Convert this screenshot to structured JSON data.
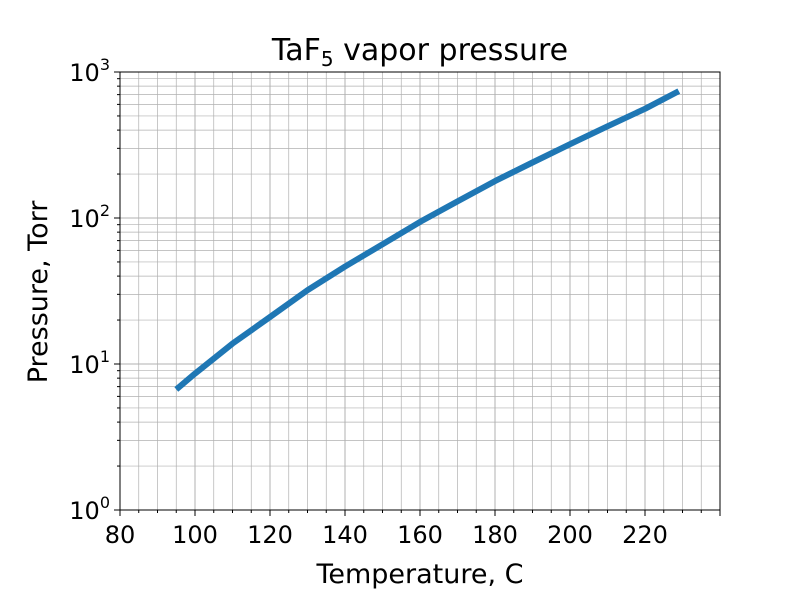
{
  "chart_data": {
    "type": "line",
    "title_main": "TaF",
    "title_sub": "5",
    "title_rest": " vapor pressure",
    "xlabel": "Temperature, C",
    "ylabel": "Pressure, Torr",
    "xlim": [
      80,
      240
    ],
    "ylim": [
      1,
      1000
    ],
    "y_scale": "log",
    "grid": true,
    "x_ticks": [
      80,
      100,
      120,
      140,
      160,
      180,
      200,
      220
    ],
    "x_tick_labels": [
      "80",
      "100",
      "120",
      "140",
      "160",
      "180",
      "200",
      "220"
    ],
    "y_ticks": [
      1,
      10,
      100,
      1000
    ],
    "y_tick_base": "10",
    "y_tick_exponents": [
      "0",
      "1",
      "2",
      "3"
    ],
    "series": [
      {
        "color": "#1f77b4",
        "x": [
          95,
          100,
          110,
          120,
          130,
          140,
          150,
          160,
          170,
          180,
          190,
          200,
          210,
          220,
          229
        ],
        "y": [
          6.7,
          8.6,
          13.8,
          21.0,
          32.0,
          46.5,
          66.0,
          94.0,
          130,
          179,
          240,
          320,
          425,
          560,
          740
        ]
      }
    ]
  }
}
